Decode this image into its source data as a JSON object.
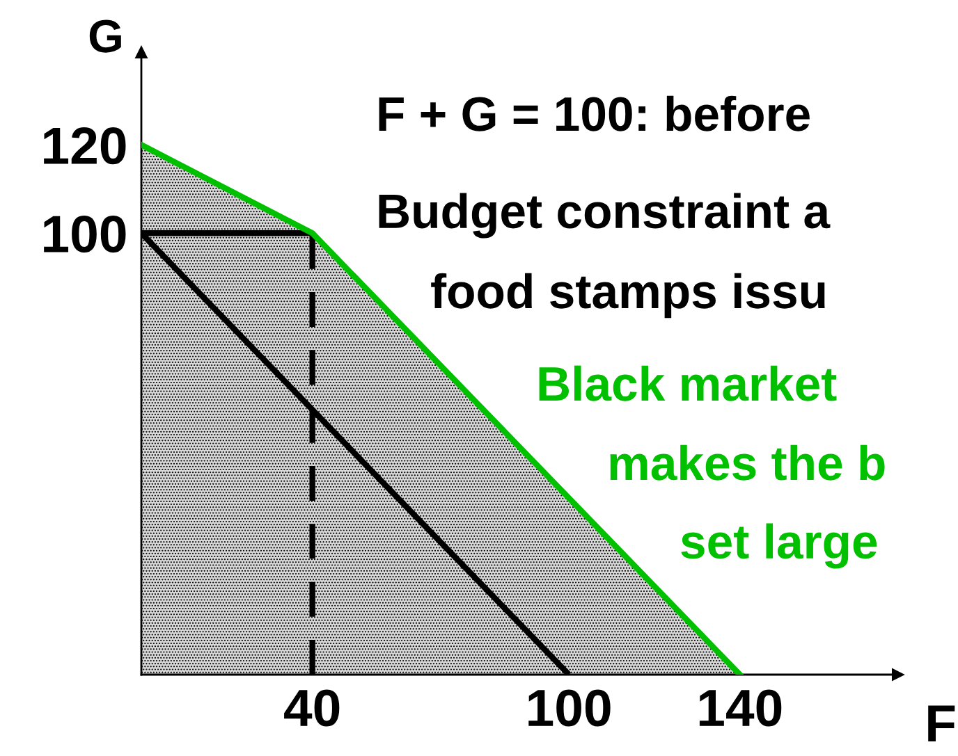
{
  "chart_data": {
    "type": "line",
    "xlabel": "F",
    "ylabel": "G",
    "xlim": [
      0,
      177
    ],
    "ylim": [
      0,
      141
    ],
    "xticks": [
      40,
      100,
      140
    ],
    "yticks": [
      100,
      120
    ],
    "series": [
      {
        "color": "#000000",
        "x": [
          0,
          40
        ],
        "values": [
          100,
          100
        ]
      },
      {
        "color": "#000000",
        "x": [
          0,
          100
        ],
        "values": [
          100,
          0
        ]
      },
      {
        "color": "#000000",
        "x": [
          40,
          40
        ],
        "values": [
          0,
          100
        ],
        "line_style": "dashed"
      },
      {
        "type": "area",
        "color": "#00c000",
        "x": [
          0,
          40,
          140
        ],
        "values": [
          120,
          100,
          0
        ]
      }
    ],
    "annotations": [
      "F + G = 100: before",
      "Budget constraint a",
      "food stamps issu",
      "Black market",
      "makes the b",
      "set large"
    ],
    "grid": false,
    "legend": false
  }
}
